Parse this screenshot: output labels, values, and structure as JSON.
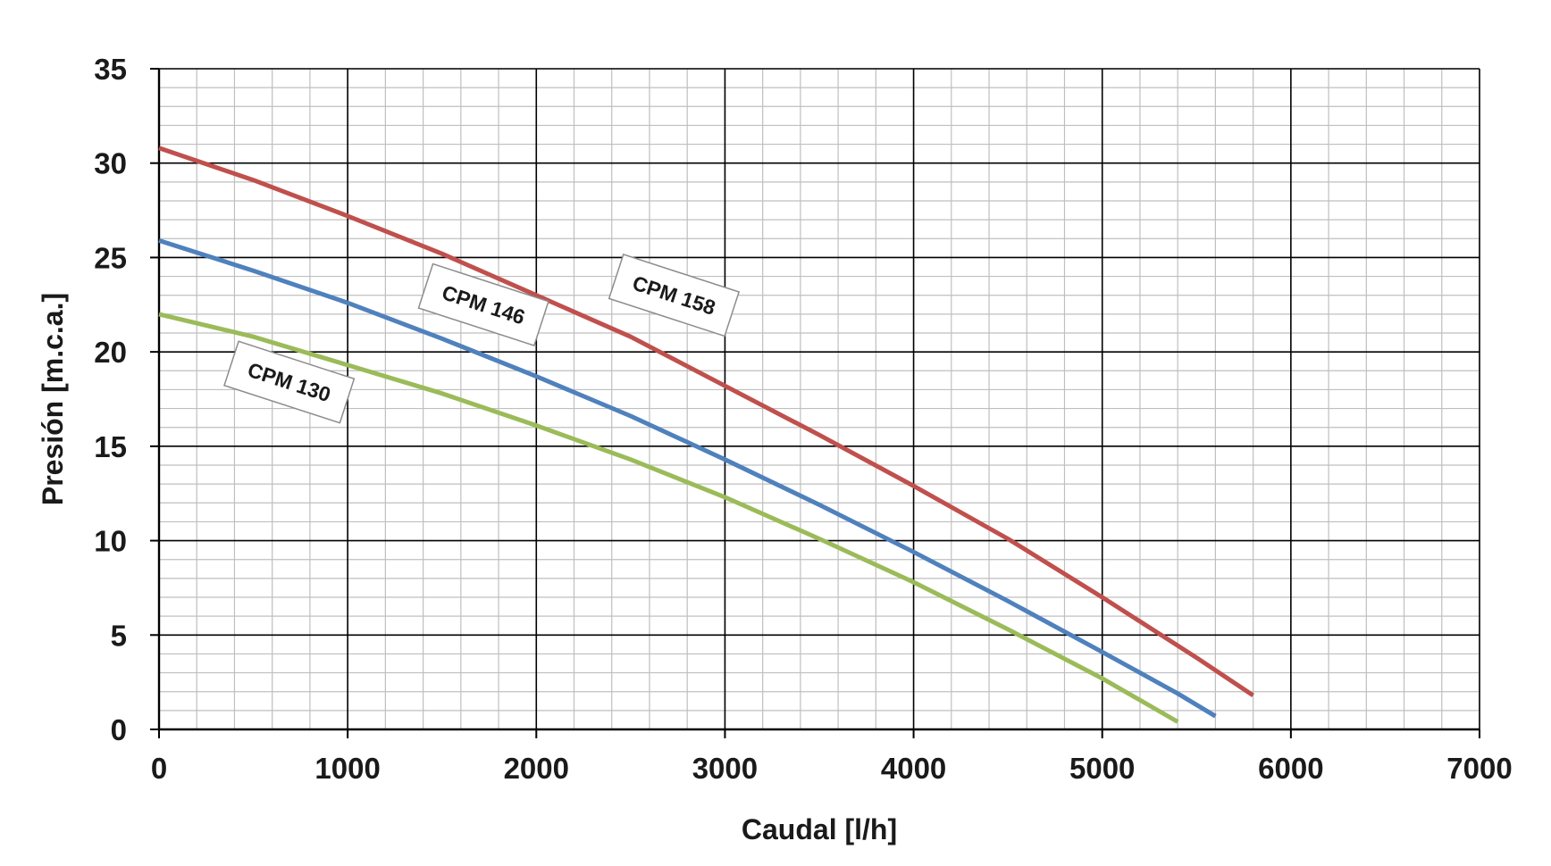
{
  "chart_data": {
    "type": "line",
    "title": "",
    "xlabel": "Caudal [l/h]",
    "ylabel": "Presión [m.c.a.]",
    "xlim": [
      0,
      7000
    ],
    "ylim": [
      0,
      35
    ],
    "x_ticks": [
      0,
      1000,
      2000,
      3000,
      4000,
      5000,
      6000,
      7000
    ],
    "y_ticks": [
      0,
      5,
      10,
      15,
      20,
      25,
      30,
      35
    ],
    "x_tick_labels": [
      "0",
      "1000",
      "2000",
      "3000",
      "4000",
      "5000",
      "6000",
      "7000"
    ],
    "y_tick_labels": [
      "0",
      "5",
      "10",
      "15",
      "20",
      "25",
      "30",
      "35"
    ],
    "x_minor_step": 200,
    "y_minor_step": 1,
    "grid": true,
    "legend": "none",
    "series": [
      {
        "name": "CPM 158",
        "color": "#c0504d",
        "x": [
          0,
          500,
          1000,
          1500,
          2000,
          2500,
          3000,
          3500,
          4000,
          4500,
          5000,
          5500,
          5800
        ],
        "y": [
          30.8,
          29.1,
          27.2,
          25.2,
          23.0,
          20.8,
          18.2,
          15.6,
          12.9,
          10.1,
          7.0,
          3.8,
          1.8
        ]
      },
      {
        "name": "CPM 146",
        "color": "#4f81bd",
        "x": [
          0,
          500,
          1000,
          1500,
          2000,
          2500,
          3000,
          3500,
          4000,
          4500,
          5000,
          5400,
          5600
        ],
        "y": [
          25.9,
          24.3,
          22.6,
          20.7,
          18.7,
          16.6,
          14.3,
          11.9,
          9.4,
          6.8,
          4.1,
          1.9,
          0.7
        ]
      },
      {
        "name": "CPM 130",
        "color": "#9bbb59",
        "x": [
          0,
          500,
          1000,
          1500,
          2000,
          2500,
          3000,
          3500,
          4000,
          4500,
          5000,
          5400
        ],
        "y": [
          22.0,
          20.8,
          19.3,
          17.8,
          16.1,
          14.3,
          12.3,
          10.1,
          7.8,
          5.3,
          2.7,
          0.4
        ]
      }
    ],
    "annotations": [
      {
        "text": "CPM 158",
        "series": "CPM 158",
        "x": 2730,
        "y": 23.0
      },
      {
        "text": "CPM 146",
        "series": "CPM 146",
        "x": 1720,
        "y": 22.5
      },
      {
        "text": "CPM 130",
        "series": "CPM 130",
        "x": 690,
        "y": 18.4
      }
    ]
  }
}
